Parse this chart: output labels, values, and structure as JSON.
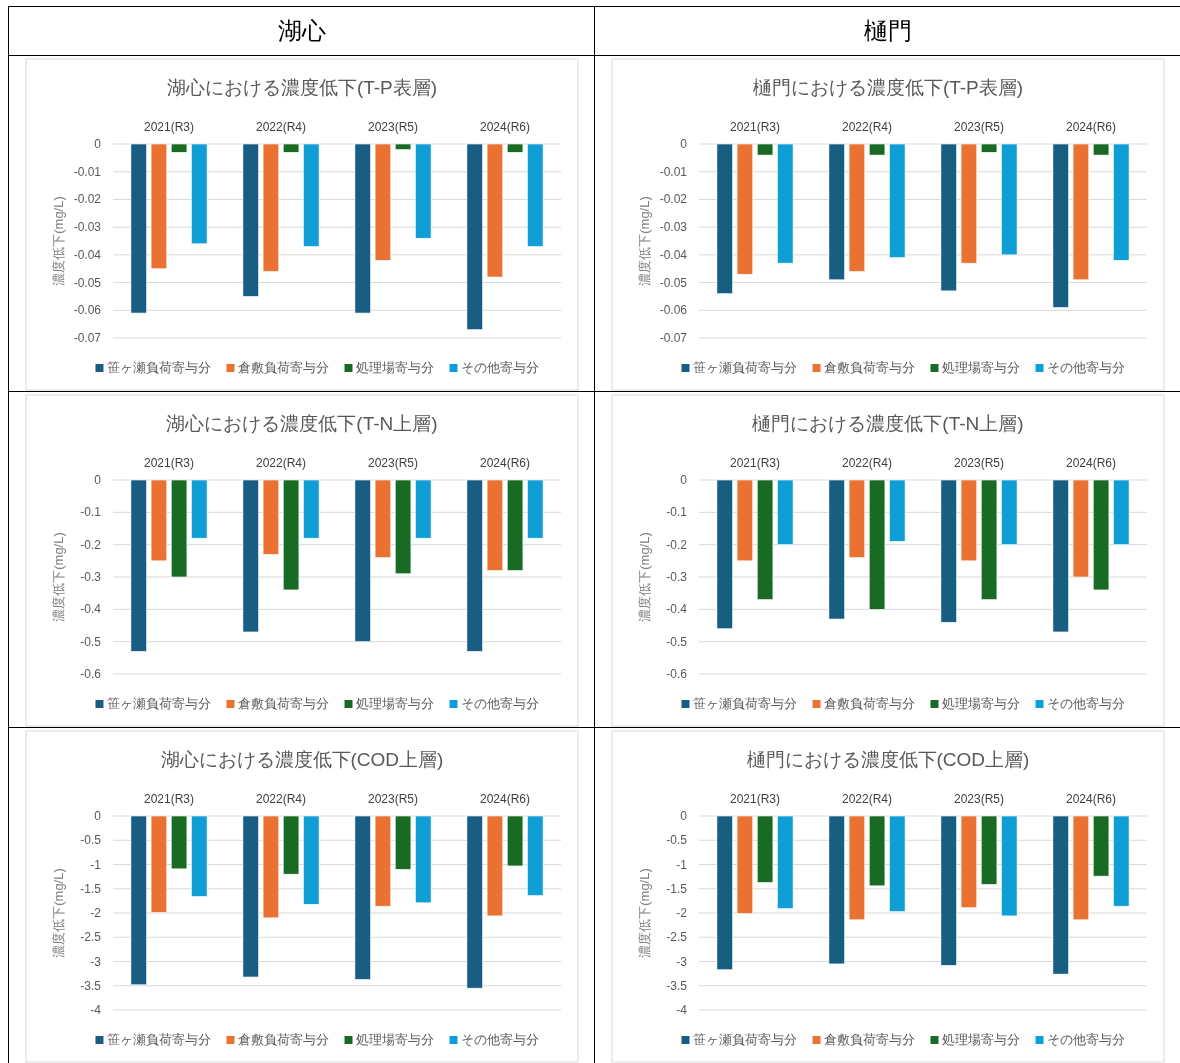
{
  "chart_data": [
    {
      "type": "other",
      "title": "湖心"
    },
    {
      "type": "other",
      "title": "樋門"
    },
    {
      "type": "bar",
      "title": "湖心における濃度低下(T-P表層)",
      "ylabel": "濃度低下(mg/L)",
      "categories": [
        "2021(R3)",
        "2022(R4)",
        "2023(R5)",
        "2024(R6)"
      ],
      "ylim": [
        -0.07,
        0
      ],
      "yticks": [
        0,
        -0.01,
        -0.02,
        -0.03,
        -0.04,
        -0.05,
        -0.06,
        -0.07
      ],
      "grid": "y",
      "legend": "bottom",
      "series": [
        {
          "name": "笹ヶ瀬負荷寄与分",
          "color": "#175e82",
          "values": [
            -0.061,
            -0.055,
            -0.061,
            -0.067
          ]
        },
        {
          "name": "倉敷負荷寄与分",
          "color": "#e97132",
          "values": [
            -0.045,
            -0.046,
            -0.042,
            -0.048
          ]
        },
        {
          "name": "処理場寄与分",
          "color": "#196b24",
          "values": [
            -0.003,
            -0.003,
            -0.002,
            -0.003
          ]
        },
        {
          "name": "その他寄与分",
          "color": "#0f9ed5",
          "values": [
            -0.036,
            -0.037,
            -0.034,
            -0.037
          ]
        }
      ]
    },
    {
      "type": "bar",
      "title": "樋門における濃度低下(T-P表層)",
      "ylabel": "濃度低下(mg/L)",
      "categories": [
        "2021(R3)",
        "2022(R4)",
        "2023(R5)",
        "2024(R6)"
      ],
      "ylim": [
        -0.07,
        0
      ],
      "yticks": [
        0,
        -0.01,
        -0.02,
        -0.03,
        -0.04,
        -0.05,
        -0.06,
        -0.07
      ],
      "grid": "y",
      "legend": "bottom",
      "series": [
        {
          "name": "笹ヶ瀬負荷寄与分",
          "color": "#175e82",
          "values": [
            -0.054,
            -0.049,
            -0.053,
            -0.059
          ]
        },
        {
          "name": "倉敷負荷寄与分",
          "color": "#e97132",
          "values": [
            -0.047,
            -0.046,
            -0.043,
            -0.049
          ]
        },
        {
          "name": "処理場寄与分",
          "color": "#196b24",
          "values": [
            -0.004,
            -0.004,
            -0.003,
            -0.004
          ]
        },
        {
          "name": "その他寄与分",
          "color": "#0f9ed5",
          "values": [
            -0.043,
            -0.041,
            -0.04,
            -0.042
          ]
        }
      ]
    },
    {
      "type": "bar",
      "title": "湖心における濃度低下(T-N上層)",
      "ylabel": "濃度低下(mg/L)",
      "categories": [
        "2021(R3)",
        "2022(R4)",
        "2023(R5)",
        "2024(R6)"
      ],
      "ylim": [
        -0.6,
        0
      ],
      "yticks": [
        0,
        -0.1,
        -0.2,
        -0.3,
        -0.4,
        -0.5,
        -0.6
      ],
      "grid": "y",
      "legend": "bottom",
      "series": [
        {
          "name": "笹ヶ瀬負荷寄与分",
          "color": "#175e82",
          "values": [
            -0.53,
            -0.47,
            -0.5,
            -0.53
          ]
        },
        {
          "name": "倉敷負荷寄与分",
          "color": "#e97132",
          "values": [
            -0.25,
            -0.23,
            -0.24,
            -0.28
          ]
        },
        {
          "name": "処理場寄与分",
          "color": "#196b24",
          "values": [
            -0.3,
            -0.34,
            -0.29,
            -0.28
          ]
        },
        {
          "name": "その他寄与分",
          "color": "#0f9ed5",
          "values": [
            -0.18,
            -0.18,
            -0.18,
            -0.18
          ]
        }
      ]
    },
    {
      "type": "bar",
      "title": "樋門における濃度低下(T-N上層)",
      "ylabel": "濃度低下(mg/L)",
      "categories": [
        "2021(R3)",
        "2022(R4)",
        "2023(R5)",
        "2024(R6)"
      ],
      "ylim": [
        -0.6,
        0
      ],
      "yticks": [
        0,
        -0.1,
        -0.2,
        -0.3,
        -0.4,
        -0.5,
        -0.6
      ],
      "grid": "y",
      "legend": "bottom",
      "series": [
        {
          "name": "笹ヶ瀬負荷寄与分",
          "color": "#175e82",
          "values": [
            -0.46,
            -0.43,
            -0.44,
            -0.47
          ]
        },
        {
          "name": "倉敷負荷寄与分",
          "color": "#e97132",
          "values": [
            -0.25,
            -0.24,
            -0.25,
            -0.3
          ]
        },
        {
          "name": "処理場寄与分",
          "color": "#196b24",
          "values": [
            -0.37,
            -0.4,
            -0.37,
            -0.34
          ]
        },
        {
          "name": "その他寄与分",
          "color": "#0f9ed5",
          "values": [
            -0.2,
            -0.19,
            -0.2,
            -0.2
          ]
        }
      ]
    },
    {
      "type": "bar",
      "title": "湖心における濃度低下(COD上層)",
      "ylabel": "濃度低下(mg/L)",
      "categories": [
        "2021(R3)",
        "2022(R4)",
        "2023(R5)",
        "2024(R6)"
      ],
      "ylim": [
        -4,
        0
      ],
      "yticks": [
        0,
        -0.5,
        -1,
        -1.5,
        -2,
        -2.5,
        -3,
        -3.5,
        -4
      ],
      "grid": "y",
      "legend": "bottom",
      "series": [
        {
          "name": "笹ヶ瀬負荷寄与分",
          "color": "#175e82",
          "values": [
            -3.48,
            -3.32,
            -3.37,
            -3.55
          ]
        },
        {
          "name": "倉敷負荷寄与分",
          "color": "#e97132",
          "values": [
            -1.99,
            -2.1,
            -1.86,
            -2.06
          ]
        },
        {
          "name": "処理場寄与分",
          "color": "#196b24",
          "values": [
            -1.09,
            -1.2,
            -1.1,
            -1.03
          ]
        },
        {
          "name": "その他寄与分",
          "color": "#0f9ed5",
          "values": [
            -1.66,
            -1.82,
            -1.79,
            -1.64
          ]
        }
      ]
    },
    {
      "type": "bar",
      "title": "樋門における濃度低下(COD上層)",
      "ylabel": "濃度低下(mg/L)",
      "categories": [
        "2021(R3)",
        "2022(R4)",
        "2023(R5)",
        "2024(R6)"
      ],
      "ylim": [
        -4,
        0
      ],
      "yticks": [
        0,
        -0.5,
        -1,
        -1.5,
        -2,
        -2.5,
        -3,
        -3.5,
        -4
      ],
      "grid": "y",
      "legend": "bottom",
      "series": [
        {
          "name": "笹ヶ瀬負荷寄与分",
          "color": "#175e82",
          "values": [
            -3.17,
            -3.05,
            -3.08,
            -3.26
          ]
        },
        {
          "name": "倉敷負荷寄与分",
          "color": "#e97132",
          "values": [
            -2.01,
            -2.14,
            -1.89,
            -2.14
          ]
        },
        {
          "name": "処理場寄与分",
          "color": "#196b24",
          "values": [
            -1.37,
            -1.44,
            -1.41,
            -1.24
          ]
        },
        {
          "name": "その他寄与分",
          "color": "#0f9ed5",
          "values": [
            -1.91,
            -1.97,
            -2.06,
            -1.86
          ]
        }
      ]
    }
  ]
}
